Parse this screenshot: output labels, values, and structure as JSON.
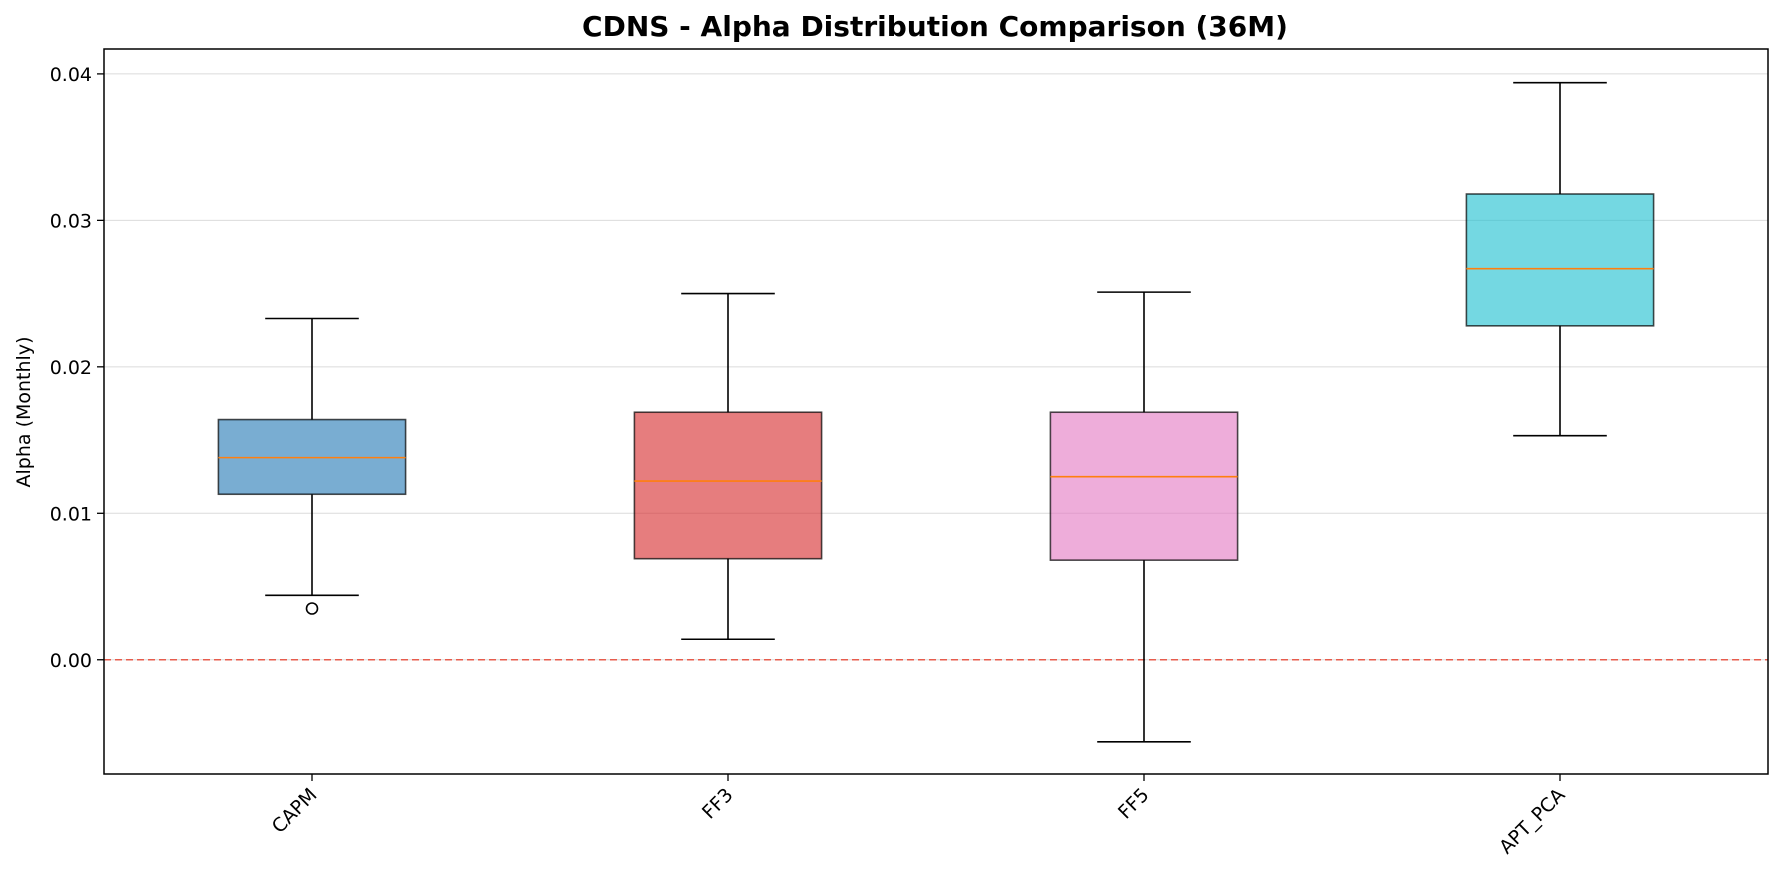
{
  "chart_data": {
    "type": "box",
    "title": "CDNS - Alpha Distribution Comparison (36M)",
    "xlabel": "",
    "ylabel": "Alpha (Monthly)",
    "ylim": [
      -0.0078,
      0.0417
    ],
    "yticks": [
      0.0,
      0.01,
      0.02,
      0.03,
      0.04
    ],
    "ytick_labels": [
      "0.00",
      "0.01",
      "0.02",
      "0.03",
      "0.04"
    ],
    "grid": "y",
    "reference_line": {
      "y": 0.0,
      "style": "dashed",
      "color": "#e74c3c"
    },
    "median_color": "#ff7f0e",
    "categories": [
      "CAPM",
      "FF3",
      "FF5",
      "APT_PCA"
    ],
    "boxes": [
      {
        "category": "CAPM",
        "whisker_low": 0.0044,
        "q1": 0.0113,
        "median": 0.0138,
        "q3": 0.0164,
        "whisker_high": 0.0233,
        "outliers": [
          0.0035
        ],
        "color": "#1f77b4"
      },
      {
        "category": "FF3",
        "whisker_low": 0.0014,
        "q1": 0.0069,
        "median": 0.0122,
        "q3": 0.0169,
        "whisker_high": 0.025,
        "outliers": [],
        "color": "#d62728"
      },
      {
        "category": "FF5",
        "whisker_low": -0.0056,
        "q1": 0.0068,
        "median": 0.0125,
        "q3": 0.0169,
        "whisker_high": 0.0251,
        "outliers": [],
        "color": "#e377c2"
      },
      {
        "category": "APT_PCA",
        "whisker_low": 0.0153,
        "q1": 0.0228,
        "median": 0.0267,
        "q3": 0.0318,
        "whisker_high": 0.0394,
        "outliers": [],
        "color": "#17becf"
      }
    ]
  }
}
